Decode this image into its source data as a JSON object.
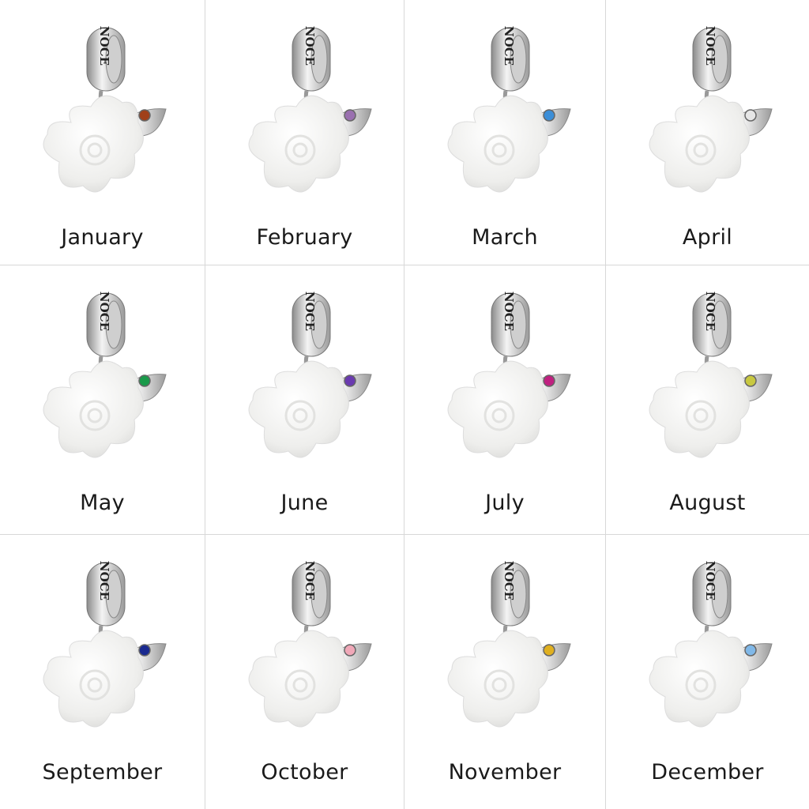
{
  "brand_engraving": "NOCE",
  "months": [
    {
      "label": "January",
      "stone_color": "#a0401a"
    },
    {
      "label": "February",
      "stone_color": "#9a70b0"
    },
    {
      "label": "March",
      "stone_color": "#3b8ed8"
    },
    {
      "label": "April",
      "stone_color": "#e6e6e6"
    },
    {
      "label": "May",
      "stone_color": "#1a9a4a"
    },
    {
      "label": "June",
      "stone_color": "#6a3ab0"
    },
    {
      "label": "July",
      "stone_color": "#c02080"
    },
    {
      "label": "August",
      "stone_color": "#c8c840"
    },
    {
      "label": "September",
      "stone_color": "#1a2a90"
    },
    {
      "label": "October",
      "stone_color": "#f0a8b8"
    },
    {
      "label": "November",
      "stone_color": "#e0b020"
    },
    {
      "label": "December",
      "stone_color": "#80b8e8"
    }
  ]
}
